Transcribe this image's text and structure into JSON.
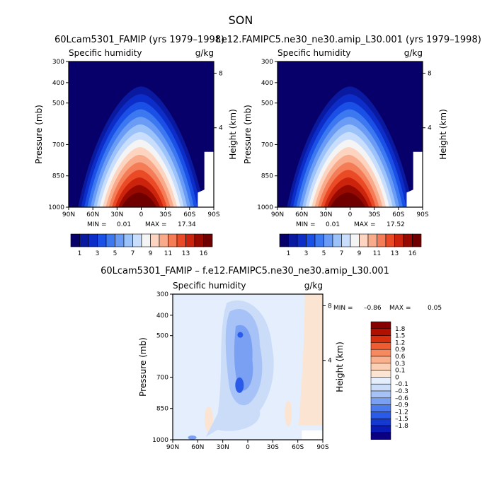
{
  "figure": {
    "season": "SON",
    "left_title": "60Lcam5301_FAMIP (yrs 1979–1998)",
    "right_title": "f.e12.FAMIPC5.ne30_ne30.amip_L30.001 (yrs 1979–1998)",
    "diff_title": "60Lcam5301_FAMIP – f.e12.FAMIPC5.ne30_ne30.amip_L30.001"
  },
  "colors": {
    "abs_levels": [
      "#08006a",
      "#0a1aa0",
      "#0d2dc8",
      "#1a50e6",
      "#3c78f0",
      "#6a9cf6",
      "#9cc2fa",
      "#c8defc",
      "#f4f4f4",
      "#fcd4c0",
      "#f8aa8a",
      "#f47c56",
      "#ea4a26",
      "#cc240c",
      "#980a00",
      "#700000"
    ],
    "diff_levels": [
      "#0c0082",
      "#0a1ab4",
      "#1438d0",
      "#2a5ae8",
      "#4a7aee",
      "#7aa0f4",
      "#a6c2f6",
      "#cadcf8",
      "#e4eefc",
      "#fce4d2",
      "#fbcfb4",
      "#f9b08c",
      "#f68a5e",
      "#ef5c32",
      "#d8300e",
      "#b01000",
      "#860000"
    ]
  },
  "chart_data": [
    {
      "type": "heatmap",
      "panel": "left",
      "title": "Specific humidity",
      "units": "g/kg",
      "xlabel": "",
      "ylabel": "Pressure (mb)",
      "ylabel_right": "Height (km)",
      "x_ticks": [
        "90N",
        "60N",
        "30N",
        "0",
        "30S",
        "60S",
        "90S"
      ],
      "y_ticks": [
        "300",
        "400",
        "500",
        "700",
        "850",
        "1000"
      ],
      "y2_ticks": [
        "8",
        "4"
      ],
      "min_label": "MIN =",
      "min_value": "0.01",
      "max_label": "MAX =",
      "max_value": "17.34",
      "colorbar_labels": [
        "1",
        "3",
        "5",
        "7",
        "9",
        "11",
        "13",
        "16"
      ]
    },
    {
      "type": "heatmap",
      "panel": "right",
      "title": "Specific humidity",
      "units": "g/kg",
      "xlabel": "",
      "ylabel": "Pressure (mb)",
      "ylabel_right": "Height (km)",
      "x_ticks": [
        "90N",
        "60N",
        "30N",
        "0",
        "30S",
        "60S",
        "90S"
      ],
      "y_ticks": [
        "300",
        "400",
        "500",
        "700",
        "850",
        "1000"
      ],
      "y2_ticks": [
        "8",
        "4"
      ],
      "min_label": "MIN =",
      "min_value": "0.01",
      "max_label": "MAX =",
      "max_value": "17.52",
      "colorbar_labels": [
        "1",
        "3",
        "5",
        "7",
        "9",
        "11",
        "13",
        "16"
      ]
    },
    {
      "type": "heatmap",
      "panel": "difference",
      "title": "Specific humidity",
      "units": "g/kg",
      "xlabel": "",
      "ylabel": "Pressure (mb)",
      "ylabel_right": "Height (km)",
      "x_ticks": [
        "90N",
        "60N",
        "30N",
        "0",
        "30S",
        "60S",
        "90S"
      ],
      "y_ticks": [
        "300",
        "400",
        "500",
        "700",
        "850",
        "1000"
      ],
      "y2_ticks": [
        "8",
        "4"
      ],
      "min_label": "MIN =",
      "min_value": "–0.86",
      "max_label": "MAX =",
      "max_value": "0.05",
      "colorbar_labels": [
        "1.8",
        "1.5",
        "1.2",
        "0.9",
        "0.6",
        "0.3",
        "0.1",
        "0",
        "–0.1",
        "–0.3",
        "–0.6",
        "–0.9",
        "–1.2",
        "–1.5",
        "–1.8"
      ]
    }
  ]
}
